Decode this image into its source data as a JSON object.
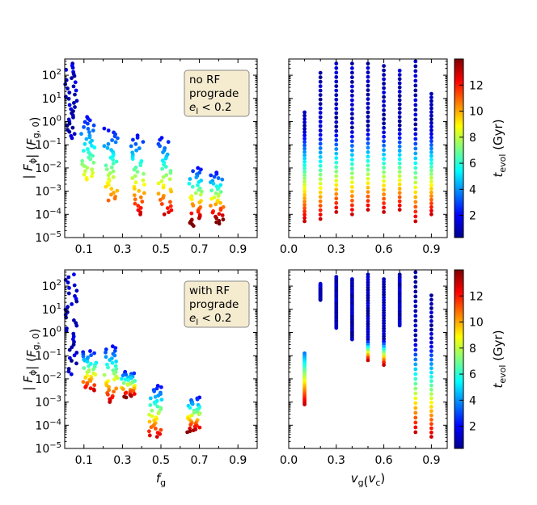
{
  "chart_data": {
    "type": "scatter",
    "layout": "2x2 panels with colorbars",
    "colormap": "jet",
    "marker_color_variable": "t_evol (Gyr)",
    "panels": [
      {
        "id": "top-left",
        "x_variable": "f_g",
        "xlim": [
          0.0,
          1.0
        ],
        "ylim_log10": [
          -5,
          2.7
        ],
        "yscale": "log",
        "xtick_labels": [
          "0.1",
          "0.3",
          "0.5",
          "0.7",
          "0.9"
        ],
        "ytick_labels": [
          "10^2",
          "10^1",
          "10^0",
          "10^-1",
          "10^-2",
          "10^-3",
          "10^-4",
          "10^-5"
        ],
        "annotation_lines": [
          "no RF",
          "prograde",
          "e_l < 0.2"
        ],
        "approx_clusters": [
          {
            "x": 0.03,
            "log10_y_range": [
              -0.8,
              2.5
            ],
            "t_evol_gyr": 1
          },
          {
            "x": 0.12,
            "log10_y_range": [
              -2.5,
              0.2
            ],
            "t_evol_gyr": 5
          },
          {
            "x": 0.24,
            "log10_y_range": [
              -3.4,
              -0.3
            ],
            "t_evol_gyr": 7
          },
          {
            "x": 0.38,
            "log10_y_range": [
              -4.0,
              -0.6
            ],
            "t_evol_gyr": 9
          },
          {
            "x": 0.52,
            "log10_y_range": [
              -4.0,
              -0.7
            ],
            "t_evol_gyr": 9
          },
          {
            "x": 0.68,
            "log10_y_range": [
              -4.5,
              -2.0
            ],
            "t_evol_gyr": 11
          },
          {
            "x": 0.79,
            "log10_y_range": [
              -4.4,
              -2.2
            ],
            "t_evol_gyr": 11
          }
        ]
      },
      {
        "id": "top-right",
        "x_variable": "v_g (v_c)",
        "xlim": [
          0.0,
          1.0
        ],
        "ylim_log10": [
          -5,
          2.7
        ],
        "yscale": "log",
        "xtick_labels": [
          "0.0",
          "0.3",
          "0.6",
          "0.9"
        ],
        "xtick_minor": [
          0.1,
          0.2,
          0.4,
          0.5,
          0.7,
          0.8
        ],
        "columns": [
          {
            "x": 0.1,
            "log10_y_range": [
              -4.3,
              0.4
            ],
            "t_evol_gyr": 7
          },
          {
            "x": 0.2,
            "log10_y_range": [
              -4.2,
              2.1
            ],
            "t_evol_gyr": 7
          },
          {
            "x": 0.3,
            "log10_y_range": [
              -3.9,
              2.5
            ],
            "t_evol_gyr": 7
          },
          {
            "x": 0.4,
            "log10_y_range": [
              -4.0,
              2.5
            ],
            "t_evol_gyr": 7
          },
          {
            "x": 0.5,
            "log10_y_range": [
              -3.8,
              2.5
            ],
            "t_evol_gyr": 7
          },
          {
            "x": 0.6,
            "log10_y_range": [
              -3.9,
              2.4
            ],
            "t_evol_gyr": 7
          },
          {
            "x": 0.7,
            "log10_y_range": [
              -3.8,
              2.2
            ],
            "t_evol_gyr": 7
          },
          {
            "x": 0.8,
            "log10_y_range": [
              -4.3,
              2.6
            ],
            "t_evol_gyr": 7
          },
          {
            "x": 0.9,
            "log10_y_range": [
              -4.0,
              1.2
            ],
            "t_evol_gyr": 7
          }
        ]
      },
      {
        "id": "bottom-left",
        "x_variable": "f_g",
        "xlim": [
          0.0,
          1.0
        ],
        "ylim_log10": [
          -5,
          2.7
        ],
        "yscale": "log",
        "xtick_labels": [
          "0.1",
          "0.3",
          "0.5",
          "0.7",
          "0.9"
        ],
        "ytick_labels": [
          "10^2",
          "10^1",
          "10^0",
          "10^-1",
          "10^-2",
          "10^-3",
          "10^-4",
          "10^-5"
        ],
        "annotation_lines": [
          "with RF",
          "prograde",
          "e_l < 0.2"
        ],
        "approx_clusters": [
          {
            "x": 0.03,
            "log10_y_range": [
              -1.8,
              2.5
            ],
            "t_evol_gyr": 1
          },
          {
            "x": 0.13,
            "log10_y_range": [
              -2.5,
              -0.8
            ],
            "t_evol_gyr": 9
          },
          {
            "x": 0.24,
            "log10_y_range": [
              -3.0,
              -0.6
            ],
            "t_evol_gyr": 9
          },
          {
            "x": 0.33,
            "log10_y_range": [
              -2.8,
              -1.7
            ],
            "t_evol_gyr": 10
          },
          {
            "x": 0.47,
            "log10_y_range": [
              -4.5,
              -2.3
            ],
            "t_evol_gyr": 9
          },
          {
            "x": 0.67,
            "log10_y_range": [
              -4.3,
              -2.8
            ],
            "t_evol_gyr": 10
          }
        ]
      },
      {
        "id": "bottom-right",
        "x_variable": "v_g (v_c)",
        "xlim": [
          0.0,
          1.0
        ],
        "ylim_log10": [
          -5,
          2.7
        ],
        "yscale": "log",
        "xtick_labels": [
          "0.0",
          "0.3",
          "0.6",
          "0.9"
        ],
        "xtick_minor": [
          0.1,
          0.2,
          0.4,
          0.5,
          0.7,
          0.8
        ],
        "columns": [
          {
            "x": 0.1,
            "log10_y_range": [
              -3.1,
              -0.9
            ],
            "t_evol_gyr": 10
          },
          {
            "x": 0.2,
            "log10_y_range": [
              1.4,
              2.1
            ],
            "t_evol_gyr": 1
          },
          {
            "x": 0.3,
            "log10_y_range": [
              0.2,
              2.4
            ],
            "t_evol_gyr": 1
          },
          {
            "x": 0.4,
            "log10_y_range": [
              -0.3,
              2.3
            ],
            "t_evol_gyr": 1
          },
          {
            "x": 0.5,
            "log10_y_range": [
              -1.2,
              2.5
            ],
            "t_evol_gyr": 1
          },
          {
            "x": 0.6,
            "log10_y_range": [
              -1.4,
              2.3
            ],
            "t_evol_gyr": 1
          },
          {
            "x": 0.7,
            "log10_y_range": [
              0.3,
              2.5
            ],
            "t_evol_gyr": 1
          },
          {
            "x": 0.8,
            "log10_y_range": [
              -4.3,
              2.6
            ],
            "t_evol_gyr": 6
          },
          {
            "x": 0.9,
            "log10_y_range": [
              -4.5,
              1.6
            ],
            "t_evol_gyr": 7
          }
        ]
      }
    ],
    "colorbar": {
      "label": "t_evol (Gyr)",
      "range": [
        0.3,
        14
      ],
      "ticks": [
        2,
        4,
        6,
        8,
        10,
        12
      ]
    },
    "ylabel": "|F_phi| (F_g,0)",
    "xlabel_left": "f_g",
    "xlabel_right": "v_g(v_c)"
  }
}
